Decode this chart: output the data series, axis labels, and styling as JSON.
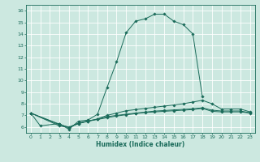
{
  "title": "",
  "xlabel": "Humidex (Indice chaleur)",
  "bg_color": "#cce8e0",
  "grid_color": "#ffffff",
  "line_color": "#1a6b5a",
  "xlim": [
    -0.5,
    23.5
  ],
  "ylim": [
    5.5,
    16.5
  ],
  "xticks": [
    0,
    1,
    2,
    3,
    4,
    5,
    6,
    7,
    8,
    9,
    10,
    11,
    12,
    13,
    14,
    15,
    16,
    17,
    18,
    19,
    20,
    21,
    22,
    23
  ],
  "yticks": [
    6,
    7,
    8,
    9,
    10,
    11,
    12,
    13,
    14,
    15,
    16
  ],
  "line1_x": [
    0,
    1,
    3,
    4,
    5,
    6,
    7,
    8,
    9,
    10,
    11,
    12,
    13,
    14,
    15,
    16,
    17,
    18
  ],
  "line1_y": [
    7.2,
    6.1,
    6.3,
    5.8,
    6.5,
    6.6,
    7.1,
    9.4,
    11.6,
    14.1,
    15.1,
    15.3,
    15.7,
    15.7,
    15.1,
    14.8,
    14.0,
    8.6
  ],
  "line2_x": [
    0,
    3,
    4,
    5,
    6,
    7,
    8,
    9,
    10,
    11,
    12,
    13,
    14,
    15,
    16,
    17,
    18,
    19,
    20,
    21,
    22,
    23
  ],
  "line2_y": [
    7.2,
    6.2,
    6.0,
    6.3,
    6.5,
    6.7,
    7.0,
    7.2,
    7.4,
    7.5,
    7.6,
    7.7,
    7.8,
    7.9,
    8.0,
    8.15,
    8.3,
    8.0,
    7.55,
    7.55,
    7.55,
    7.3
  ],
  "line3_x": [
    0,
    3,
    4,
    5,
    6,
    7,
    8,
    9,
    10,
    11,
    12,
    13,
    14,
    15,
    16,
    17,
    18,
    19,
    20,
    21,
    22,
    23
  ],
  "line3_y": [
    7.2,
    6.1,
    5.95,
    6.3,
    6.5,
    6.65,
    6.8,
    6.95,
    7.05,
    7.15,
    7.25,
    7.3,
    7.35,
    7.4,
    7.45,
    7.5,
    7.6,
    7.35,
    7.3,
    7.3,
    7.3,
    7.2
  ],
  "line4_x": [
    0,
    3,
    4,
    5,
    6,
    7,
    8,
    9,
    10,
    11,
    12,
    13,
    14,
    15,
    16,
    17,
    18,
    19,
    20,
    21,
    22,
    23
  ],
  "line4_y": [
    7.2,
    6.25,
    5.95,
    6.35,
    6.52,
    6.68,
    6.9,
    7.0,
    7.1,
    7.2,
    7.28,
    7.37,
    7.42,
    7.47,
    7.52,
    7.57,
    7.65,
    7.45,
    7.38,
    7.38,
    7.38,
    7.22
  ]
}
